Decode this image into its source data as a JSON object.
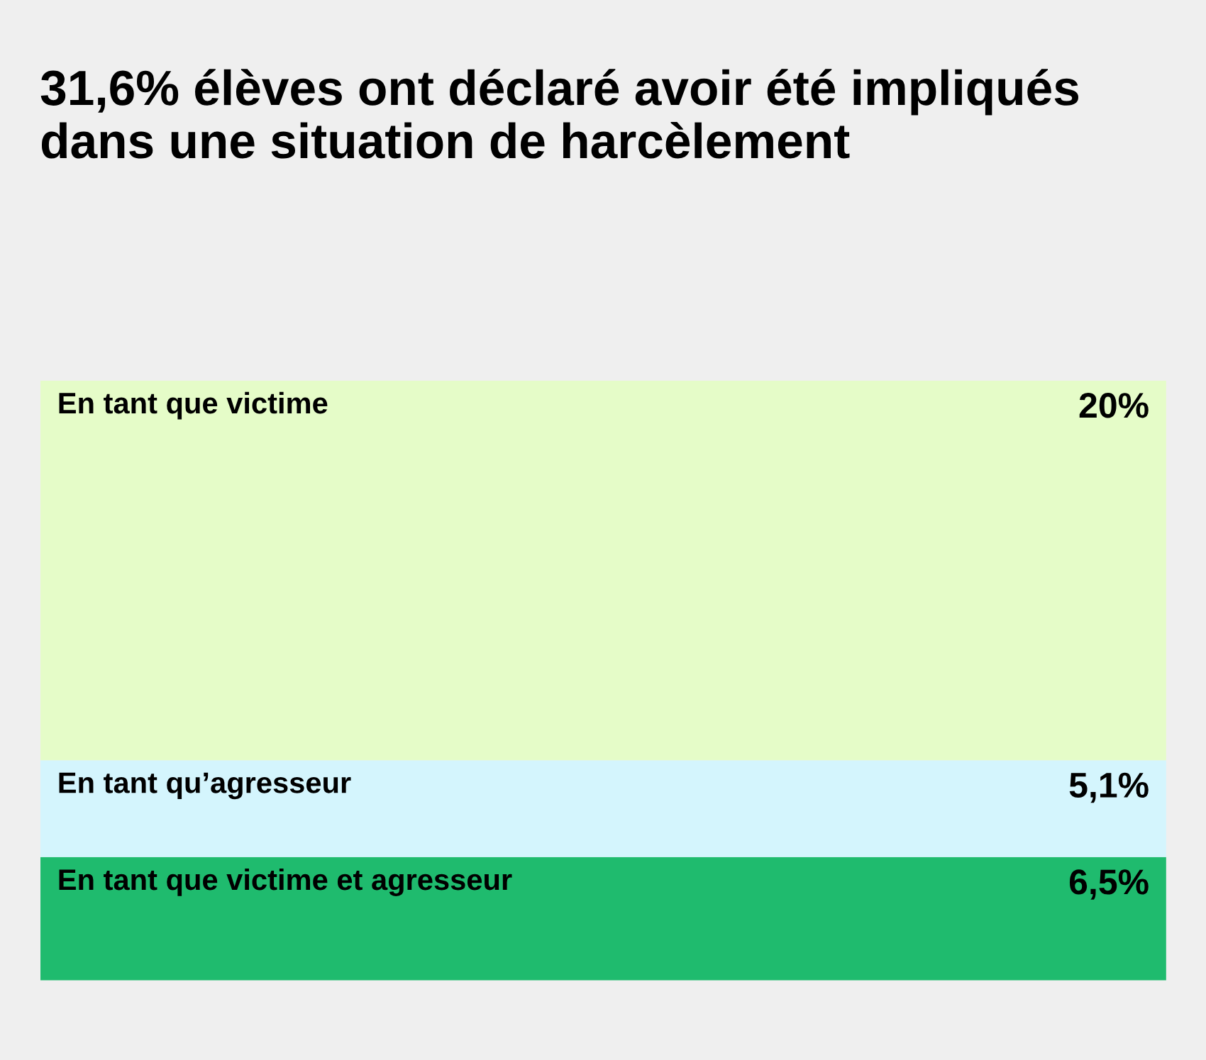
{
  "chart_data": {
    "type": "bar",
    "title": "31,6% élèves ont déclaré avoir été impliqués dans une situation de harcèlement",
    "categories": [
      null
    ],
    "stacked": true,
    "tick_labels": false,
    "series": [
      {
        "name": "En tant que victime et agresseur",
        "color": "#1fbb6e",
        "values": [
          6.5
        ],
        "value_labels": [
          "6,5%"
        ]
      },
      {
        "name": "En tant qu’agresseur",
        "color": "#d4f5fd",
        "values": [
          5.1
        ],
        "value_labels": [
          "5,1%"
        ]
      },
      {
        "name": "En tant que victime",
        "color": "#e5fcc8",
        "values": [
          20
        ],
        "value_labels": [
          "20%"
        ]
      }
    ]
  }
}
